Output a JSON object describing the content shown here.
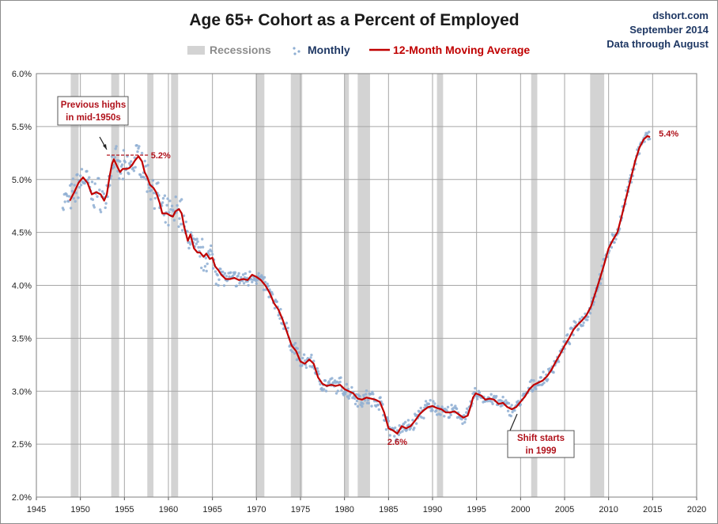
{
  "chart_data": {
    "type": "line",
    "title": "Age 65+ Cohort as a Percent of Employed",
    "source_lines": [
      "dshort.com",
      "September 2014",
      "Data through August"
    ],
    "legend": {
      "recessions_label": "Recessions",
      "monthly_label": "Monthly",
      "ma_label": "12-Month Moving Average",
      "placement": "top-center"
    },
    "colors": {
      "recession": "#d3d3d3",
      "monthly": "#8eaed2",
      "ma": "#c00000",
      "annotation": "#b0121b",
      "legend_recession_text": "#8c8c8c",
      "legend_monthly_text": "#1f3864",
      "legend_ma_text": "#c00000",
      "grid": "#a6a6a6"
    },
    "x_axis": {
      "ticks": [
        "1945",
        "1950",
        "1955",
        "1960",
        "1965",
        "1970",
        "1975",
        "1980",
        "1985",
        "1990",
        "1995",
        "2000",
        "2005",
        "2010",
        "2015",
        "2020"
      ],
      "range": [
        1945,
        2020
      ]
    },
    "y_axis": {
      "ticks": [
        "2.0%",
        "2.5%",
        "3.0%",
        "3.5%",
        "4.0%",
        "4.5%",
        "5.0%",
        "5.5%",
        "6.0%"
      ],
      "range": [
        2.0,
        6.0
      ],
      "unit": "%"
    },
    "grid": true,
    "recessions": [
      [
        1948.9,
        1949.8
      ],
      [
        1953.5,
        1954.4
      ],
      [
        1957.6,
        1958.3
      ],
      [
        1960.3,
        1961.1
      ],
      [
        1969.9,
        1970.9
      ],
      [
        1973.9,
        1975.2
      ],
      [
        1980.0,
        1980.5
      ],
      [
        1981.5,
        1982.9
      ],
      [
        1990.5,
        1991.2
      ],
      [
        2001.2,
        2001.9
      ],
      [
        2007.9,
        2009.5
      ]
    ],
    "series": [
      {
        "name": "12-Month Moving Average",
        "style": "line",
        "points": [
          [
            1948.8,
            4.8
          ],
          [
            1949.3,
            4.88
          ],
          [
            1949.8,
            4.97
          ],
          [
            1950.3,
            5.02
          ],
          [
            1950.8,
            4.97
          ],
          [
            1951.3,
            4.86
          ],
          [
            1951.8,
            4.88
          ],
          [
            1952.3,
            4.86
          ],
          [
            1952.7,
            4.8
          ],
          [
            1953.0,
            4.86
          ],
          [
            1953.3,
            5.02
          ],
          [
            1953.6,
            5.15
          ],
          [
            1953.8,
            5.19
          ],
          [
            1954.2,
            5.12
          ],
          [
            1954.5,
            5.07
          ],
          [
            1954.8,
            5.1
          ],
          [
            1955.3,
            5.1
          ],
          [
            1955.6,
            5.11
          ],
          [
            1955.9,
            5.14
          ],
          [
            1956.2,
            5.18
          ],
          [
            1956.6,
            5.22
          ],
          [
            1957.0,
            5.17
          ],
          [
            1957.3,
            5.07
          ],
          [
            1957.6,
            5.02
          ],
          [
            1957.9,
            4.95
          ],
          [
            1958.3,
            4.92
          ],
          [
            1958.6,
            4.88
          ],
          [
            1959.0,
            4.78
          ],
          [
            1959.3,
            4.68
          ],
          [
            1959.8,
            4.68
          ],
          [
            1960.2,
            4.66
          ],
          [
            1960.5,
            4.65
          ],
          [
            1960.8,
            4.7
          ],
          [
            1961.2,
            4.72
          ],
          [
            1961.5,
            4.68
          ],
          [
            1961.8,
            4.55
          ],
          [
            1962.2,
            4.42
          ],
          [
            1962.5,
            4.48
          ],
          [
            1962.9,
            4.35
          ],
          [
            1963.3,
            4.31
          ],
          [
            1963.6,
            4.31
          ],
          [
            1964.0,
            4.27
          ],
          [
            1964.3,
            4.3
          ],
          [
            1964.7,
            4.25
          ],
          [
            1965.0,
            4.26
          ],
          [
            1965.3,
            4.18
          ],
          [
            1965.7,
            4.14
          ],
          [
            1966.0,
            4.1
          ],
          [
            1966.5,
            4.06
          ],
          [
            1967.0,
            4.06
          ],
          [
            1967.5,
            4.07
          ],
          [
            1968.0,
            4.05
          ],
          [
            1968.5,
            4.06
          ],
          [
            1969.0,
            4.05
          ],
          [
            1969.5,
            4.1
          ],
          [
            1970.0,
            4.08
          ],
          [
            1970.5,
            4.05
          ],
          [
            1971.0,
            4.0
          ],
          [
            1971.5,
            3.93
          ],
          [
            1972.0,
            3.83
          ],
          [
            1972.5,
            3.77
          ],
          [
            1973.0,
            3.67
          ],
          [
            1973.5,
            3.55
          ],
          [
            1974.0,
            3.43
          ],
          [
            1974.5,
            3.38
          ],
          [
            1975.0,
            3.28
          ],
          [
            1975.5,
            3.26
          ],
          [
            1976.0,
            3.3
          ],
          [
            1976.5,
            3.26
          ],
          [
            1977.0,
            3.13
          ],
          [
            1977.5,
            3.07
          ],
          [
            1978.0,
            3.05
          ],
          [
            1978.5,
            3.06
          ],
          [
            1979.0,
            3.05
          ],
          [
            1979.5,
            3.06
          ],
          [
            1980.0,
            3.02
          ],
          [
            1980.5,
            3.0
          ],
          [
            1981.0,
            2.98
          ],
          [
            1981.5,
            2.93
          ],
          [
            1982.0,
            2.92
          ],
          [
            1982.5,
            2.94
          ],
          [
            1983.0,
            2.93
          ],
          [
            1983.5,
            2.92
          ],
          [
            1984.0,
            2.9
          ],
          [
            1984.5,
            2.8
          ],
          [
            1985.0,
            2.65
          ],
          [
            1985.5,
            2.63
          ],
          [
            1986.0,
            2.6
          ],
          [
            1986.5,
            2.67
          ],
          [
            1987.0,
            2.65
          ],
          [
            1987.5,
            2.67
          ],
          [
            1988.0,
            2.72
          ],
          [
            1988.5,
            2.78
          ],
          [
            1989.0,
            2.82
          ],
          [
            1989.5,
            2.85
          ],
          [
            1990.0,
            2.86
          ],
          [
            1990.5,
            2.84
          ],
          [
            1991.0,
            2.83
          ],
          [
            1991.5,
            2.8
          ],
          [
            1992.0,
            2.8
          ],
          [
            1992.5,
            2.81
          ],
          [
            1993.0,
            2.78
          ],
          [
            1993.5,
            2.75
          ],
          [
            1994.0,
            2.77
          ],
          [
            1994.3,
            2.85
          ],
          [
            1994.6,
            2.94
          ],
          [
            1994.9,
            2.98
          ],
          [
            1995.5,
            2.96
          ],
          [
            1996.0,
            2.92
          ],
          [
            1996.5,
            2.93
          ],
          [
            1997.0,
            2.92
          ],
          [
            1997.5,
            2.88
          ],
          [
            1998.0,
            2.89
          ],
          [
            1998.5,
            2.85
          ],
          [
            1999.0,
            2.83
          ],
          [
            1999.5,
            2.85
          ],
          [
            2000.0,
            2.9
          ],
          [
            2000.5,
            2.95
          ],
          [
            2001.0,
            3.02
          ],
          [
            2001.5,
            3.06
          ],
          [
            2002.0,
            3.08
          ],
          [
            2002.5,
            3.1
          ],
          [
            2003.0,
            3.14
          ],
          [
            2003.5,
            3.2
          ],
          [
            2004.0,
            3.28
          ],
          [
            2004.5,
            3.35
          ],
          [
            2005.0,
            3.43
          ],
          [
            2005.5,
            3.5
          ],
          [
            2006.0,
            3.58
          ],
          [
            2006.5,
            3.63
          ],
          [
            2007.0,
            3.67
          ],
          [
            2007.5,
            3.72
          ],
          [
            2008.0,
            3.8
          ],
          [
            2008.5,
            3.93
          ],
          [
            2009.0,
            4.06
          ],
          [
            2009.5,
            4.2
          ],
          [
            2010.0,
            4.35
          ],
          [
            2010.5,
            4.43
          ],
          [
            2011.0,
            4.5
          ],
          [
            2011.5,
            4.66
          ],
          [
            2012.0,
            4.83
          ],
          [
            2012.5,
            5.0
          ],
          [
            2013.0,
            5.17
          ],
          [
            2013.5,
            5.3
          ],
          [
            2014.0,
            5.38
          ],
          [
            2014.4,
            5.41
          ],
          [
            2014.7,
            5.4
          ]
        ]
      }
    ],
    "annotations": {
      "prev_high_label": "5.2%",
      "prev_high_value": 5.23,
      "low_label": "2.6%",
      "low_value": 2.6,
      "last_label": "5.4%",
      "last_value": 5.4,
      "callout1_lines": [
        "Previous highs",
        "in mid-1950s"
      ],
      "callout2_lines": [
        "Shift starts",
        "in 1999"
      ]
    }
  }
}
